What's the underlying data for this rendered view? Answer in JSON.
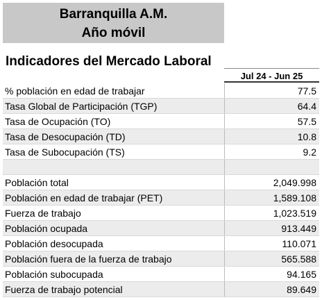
{
  "header": {
    "title": "Barranquilla A.M.",
    "subtitle": "Año móvil"
  },
  "table": {
    "title": "Indicadores del Mercado Laboral",
    "column_header": "Jul 24 - Jun 25",
    "rate_rows": [
      [
        "% población en edad de trabajar",
        "77.5"
      ],
      [
        "Tasa Global de Participación (TGP)",
        "64.4"
      ],
      [
        "Tasa de Ocupación (TO)",
        "57.5"
      ],
      [
        "Tasa de Desocupación (TD)",
        "10.8"
      ],
      [
        "Tasa de Subocupación (TS)",
        "9.2"
      ]
    ],
    "population_rows": [
      [
        "Población total",
        "2,049.998"
      ],
      [
        "Población en edad de trabajar (PET)",
        "1,589.108"
      ],
      [
        "Fuerza de trabajo",
        "1,023.519"
      ],
      [
        "Población ocupada",
        "913.449"
      ],
      [
        "Población desocupada",
        "110.071"
      ],
      [
        "Población fuera de la fuerza de trabajo",
        "565.588"
      ],
      [
        "Población subocupada",
        "94.165"
      ],
      [
        "Fuerza de trabajo potencial",
        "89.649"
      ]
    ]
  }
}
